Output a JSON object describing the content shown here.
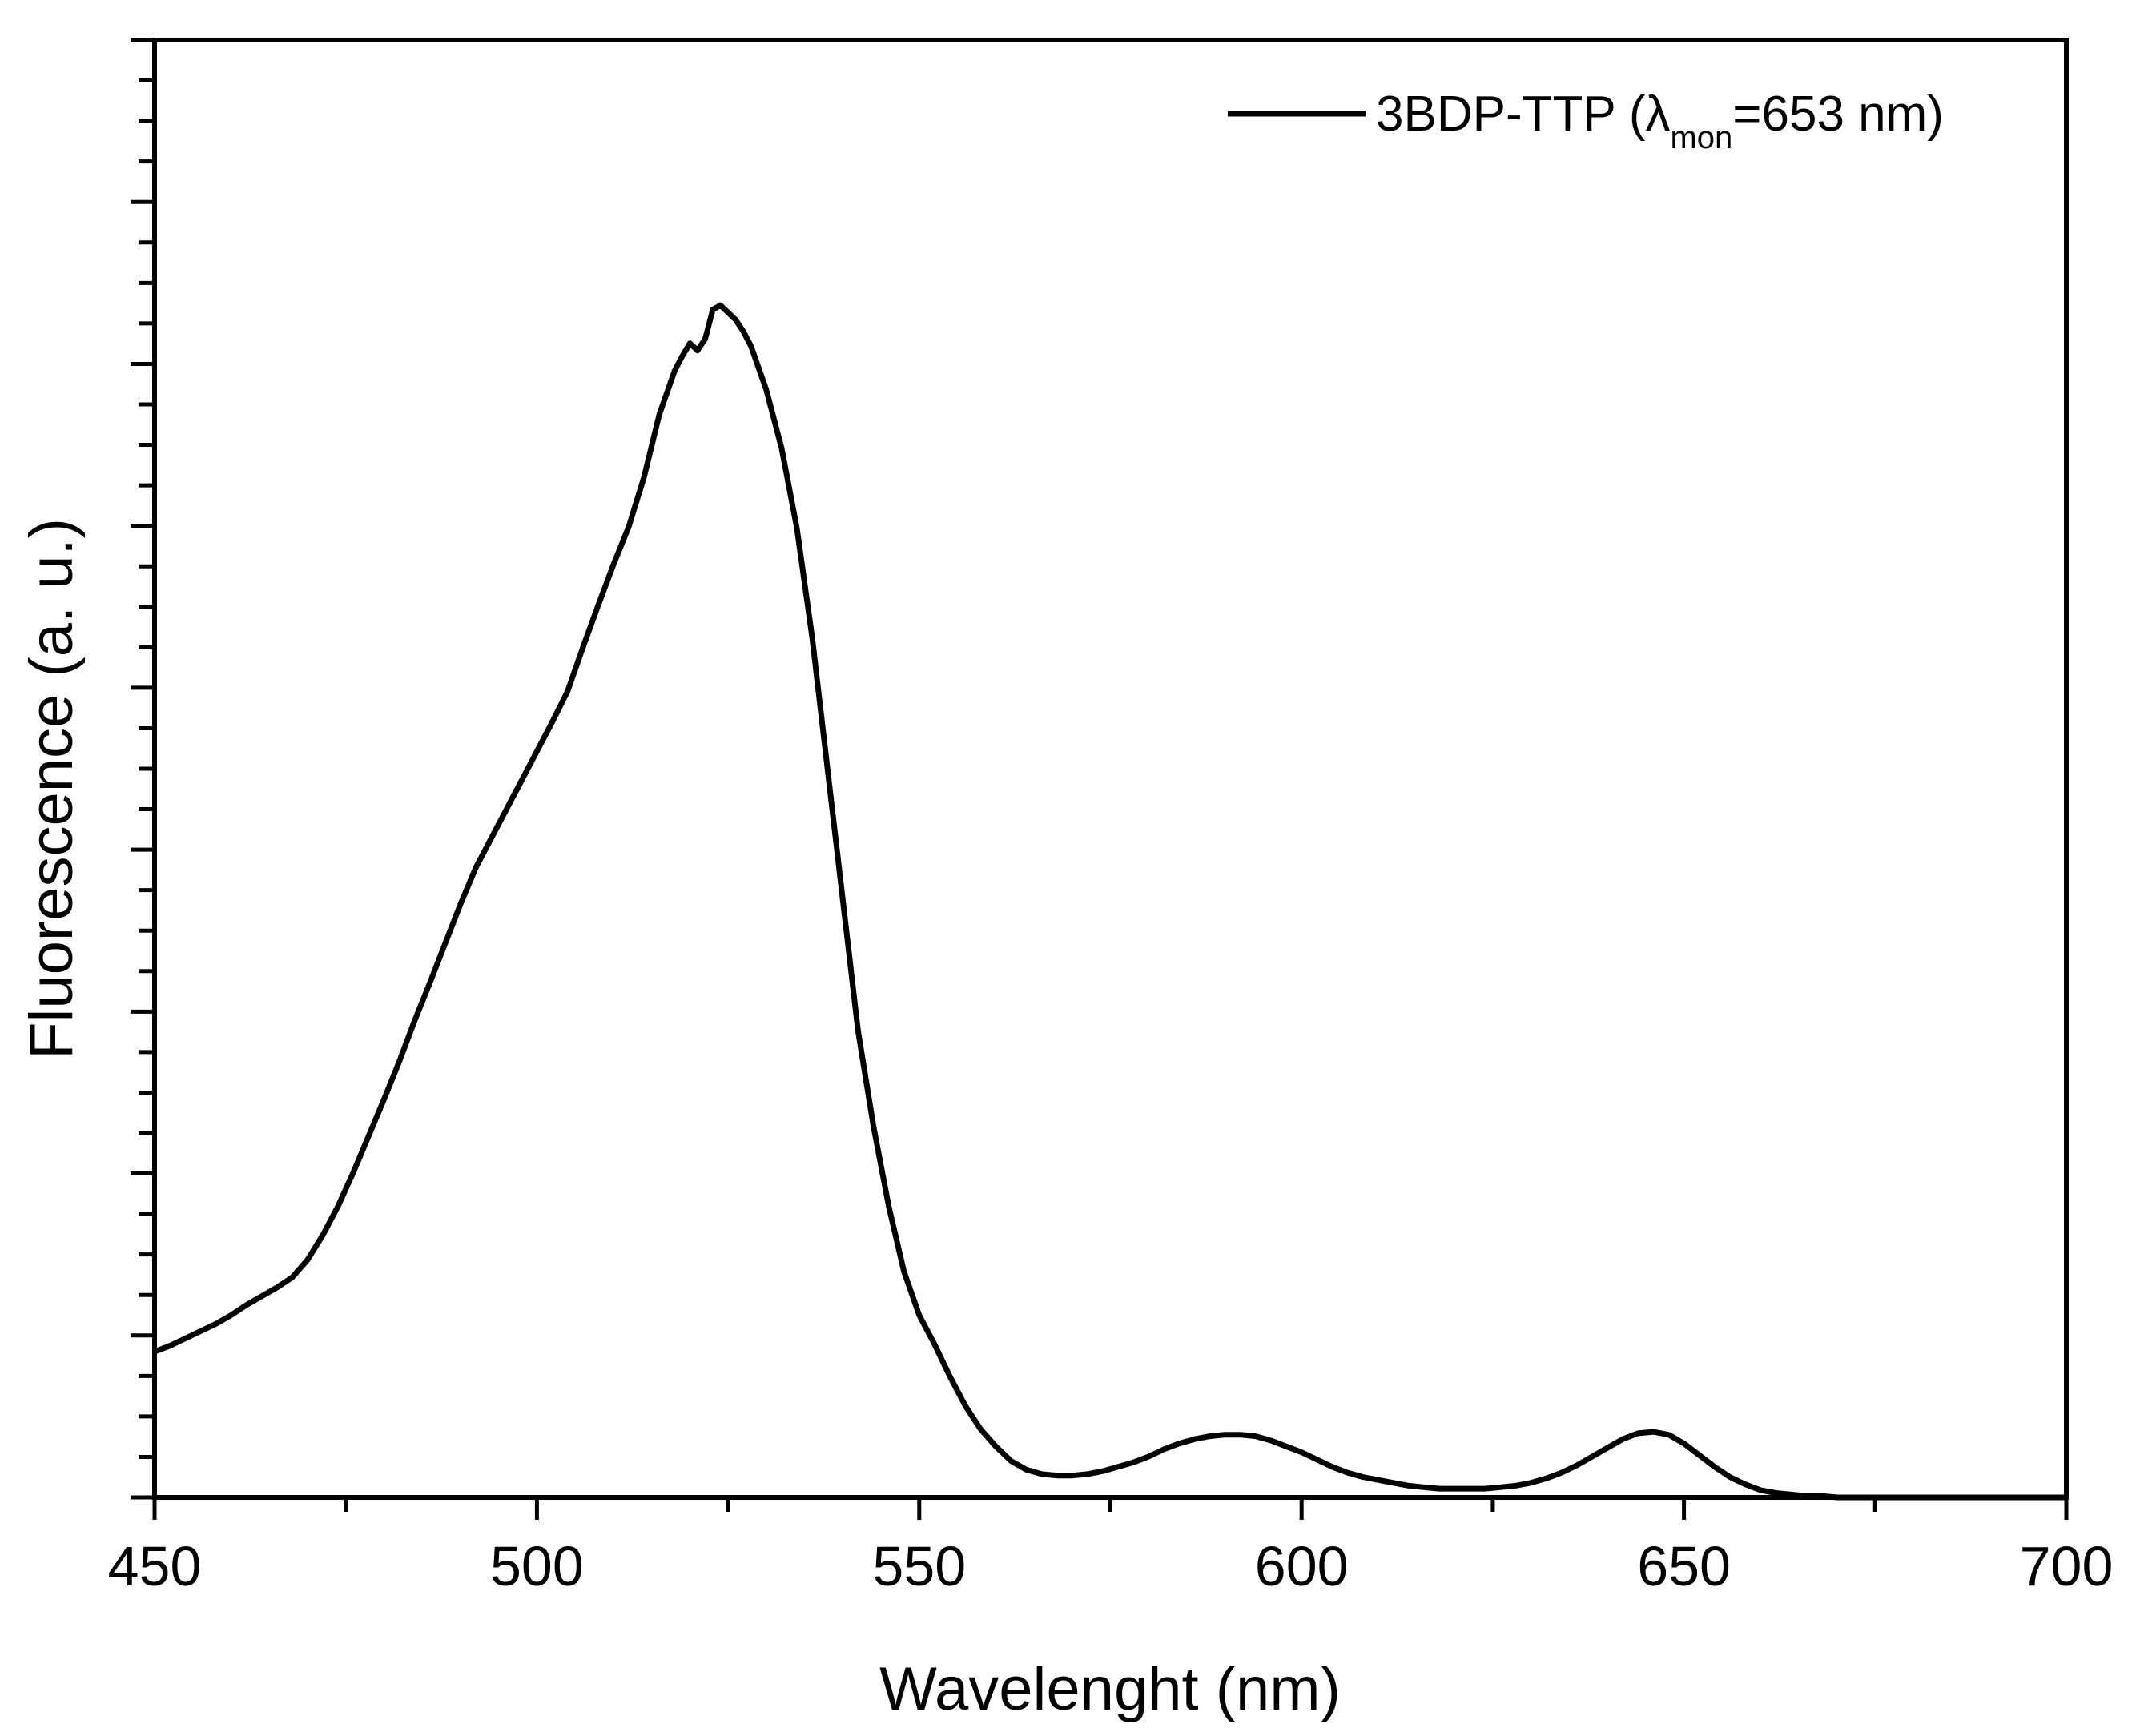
{
  "chart_data": {
    "type": "line",
    "title": "",
    "xlabel": "Wavelenght (nm)",
    "ylabel": "Fluorescence (a. u.)",
    "xlim": [
      450,
      700
    ],
    "ylim": [
      0,
      1.0
    ],
    "x_ticks": [
      450,
      500,
      550,
      600,
      650,
      700
    ],
    "x_tick_labels": [
      "450",
      "500",
      "550",
      "600",
      "650",
      "700"
    ],
    "y_tick_labels_shown": false,
    "grid": false,
    "legend_position": "top-right",
    "series": [
      {
        "name_prefix": "3BDP-TTP (λ",
        "name_subscript": "mon",
        "name_suffix": "=653 nm)",
        "color": "#000000",
        "x": [
          450,
          452,
          454,
          456,
          458,
          460,
          462,
          464,
          466,
          468,
          470,
          472,
          474,
          476,
          478,
          480,
          482,
          484,
          486,
          488,
          490,
          492,
          494,
          496,
          498,
          500,
          502,
          504,
          506,
          508,
          510,
          512,
          514,
          516,
          518,
          519,
          520,
          521,
          522,
          523,
          524,
          525,
          526,
          527,
          528,
          530,
          532,
          534,
          536,
          538,
          540,
          542,
          544,
          546,
          548,
          550,
          552,
          554,
          556,
          558,
          560,
          562,
          564,
          566,
          568,
          570,
          572,
          574,
          576,
          578,
          580,
          582,
          584,
          586,
          588,
          590,
          592,
          594,
          596,
          598,
          600,
          602,
          604,
          606,
          608,
          610,
          612,
          614,
          616,
          618,
          620,
          622,
          624,
          626,
          628,
          630,
          632,
          634,
          636,
          638,
          640,
          642,
          644,
          646,
          648,
          650,
          652,
          654,
          656,
          658,
          660,
          662,
          664,
          666,
          668,
          670,
          675,
          680,
          685,
          690,
          695,
          700
        ],
        "values": [
          0.1,
          0.104,
          0.109,
          0.114,
          0.119,
          0.125,
          0.132,
          0.138,
          0.144,
          0.151,
          0.163,
          0.18,
          0.2,
          0.223,
          0.248,
          0.273,
          0.299,
          0.327,
          0.353,
          0.38,
          0.407,
          0.432,
          0.452,
          0.472,
          0.492,
          0.512,
          0.532,
          0.553,
          0.583,
          0.612,
          0.64,
          0.666,
          0.7,
          0.743,
          0.773,
          0.783,
          0.792,
          0.787,
          0.795,
          0.815,
          0.818,
          0.813,
          0.808,
          0.8,
          0.79,
          0.76,
          0.72,
          0.665,
          0.59,
          0.5,
          0.41,
          0.32,
          0.255,
          0.2,
          0.155,
          0.125,
          0.105,
          0.083,
          0.063,
          0.047,
          0.035,
          0.025,
          0.019,
          0.016,
          0.015,
          0.015,
          0.016,
          0.018,
          0.021,
          0.024,
          0.028,
          0.033,
          0.037,
          0.04,
          0.042,
          0.043,
          0.043,
          0.042,
          0.039,
          0.035,
          0.031,
          0.026,
          0.021,
          0.017,
          0.014,
          0.012,
          0.01,
          0.008,
          0.007,
          0.006,
          0.006,
          0.006,
          0.006,
          0.007,
          0.008,
          0.01,
          0.013,
          0.017,
          0.022,
          0.028,
          0.034,
          0.04,
          0.044,
          0.045,
          0.043,
          0.037,
          0.029,
          0.021,
          0.014,
          0.009,
          0.005,
          0.003,
          0.002,
          0.001,
          0.001,
          0.0,
          0.0,
          0.0,
          0.0,
          0.0,
          0.0,
          0.0
        ]
      }
    ]
  }
}
